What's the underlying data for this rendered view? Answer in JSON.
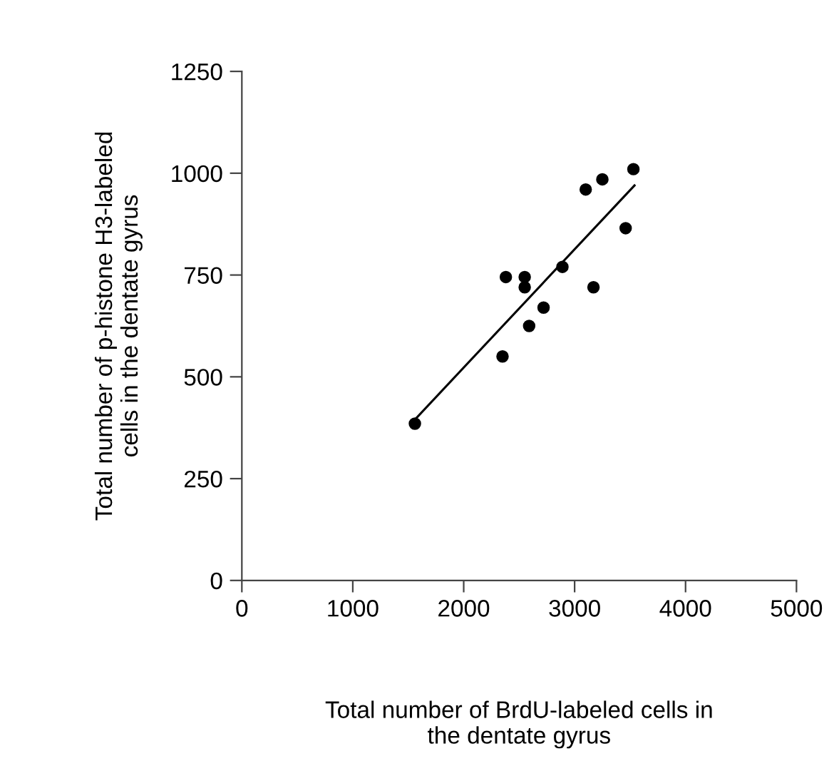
{
  "chart_data": {
    "type": "scatter",
    "xlabel": "Total number of BrdU-labeled cells in\nthe dentate gyrus",
    "ylabel": "Total number of p-histone H3-labeled\ncells in the dentate gyrus",
    "series": [
      {
        "color": "#000000",
        "marker": "circle",
        "x": [
          1560,
          2350,
          2380,
          2550,
          2550,
          2590,
          2720,
          2890,
          3100,
          3170,
          3250,
          3460,
          3530
        ],
        "values": [
          385,
          550,
          745,
          745,
          720,
          625,
          670,
          770,
          960,
          720,
          985,
          865,
          1010
        ]
      },
      {
        "type": "line",
        "color": "#000000",
        "line_style": "solid",
        "marker": "none",
        "x": [
          1560,
          3540
        ],
        "values": [
          395,
          970
        ]
      }
    ],
    "xlim": [
      0,
      5000
    ],
    "xticks": [
      0,
      1000,
      2000,
      3000,
      4000,
      5000
    ],
    "ylim": [
      0,
      1250
    ],
    "yticks": [
      0,
      250,
      500,
      750,
      1000,
      1250
    ],
    "grid": false
  }
}
